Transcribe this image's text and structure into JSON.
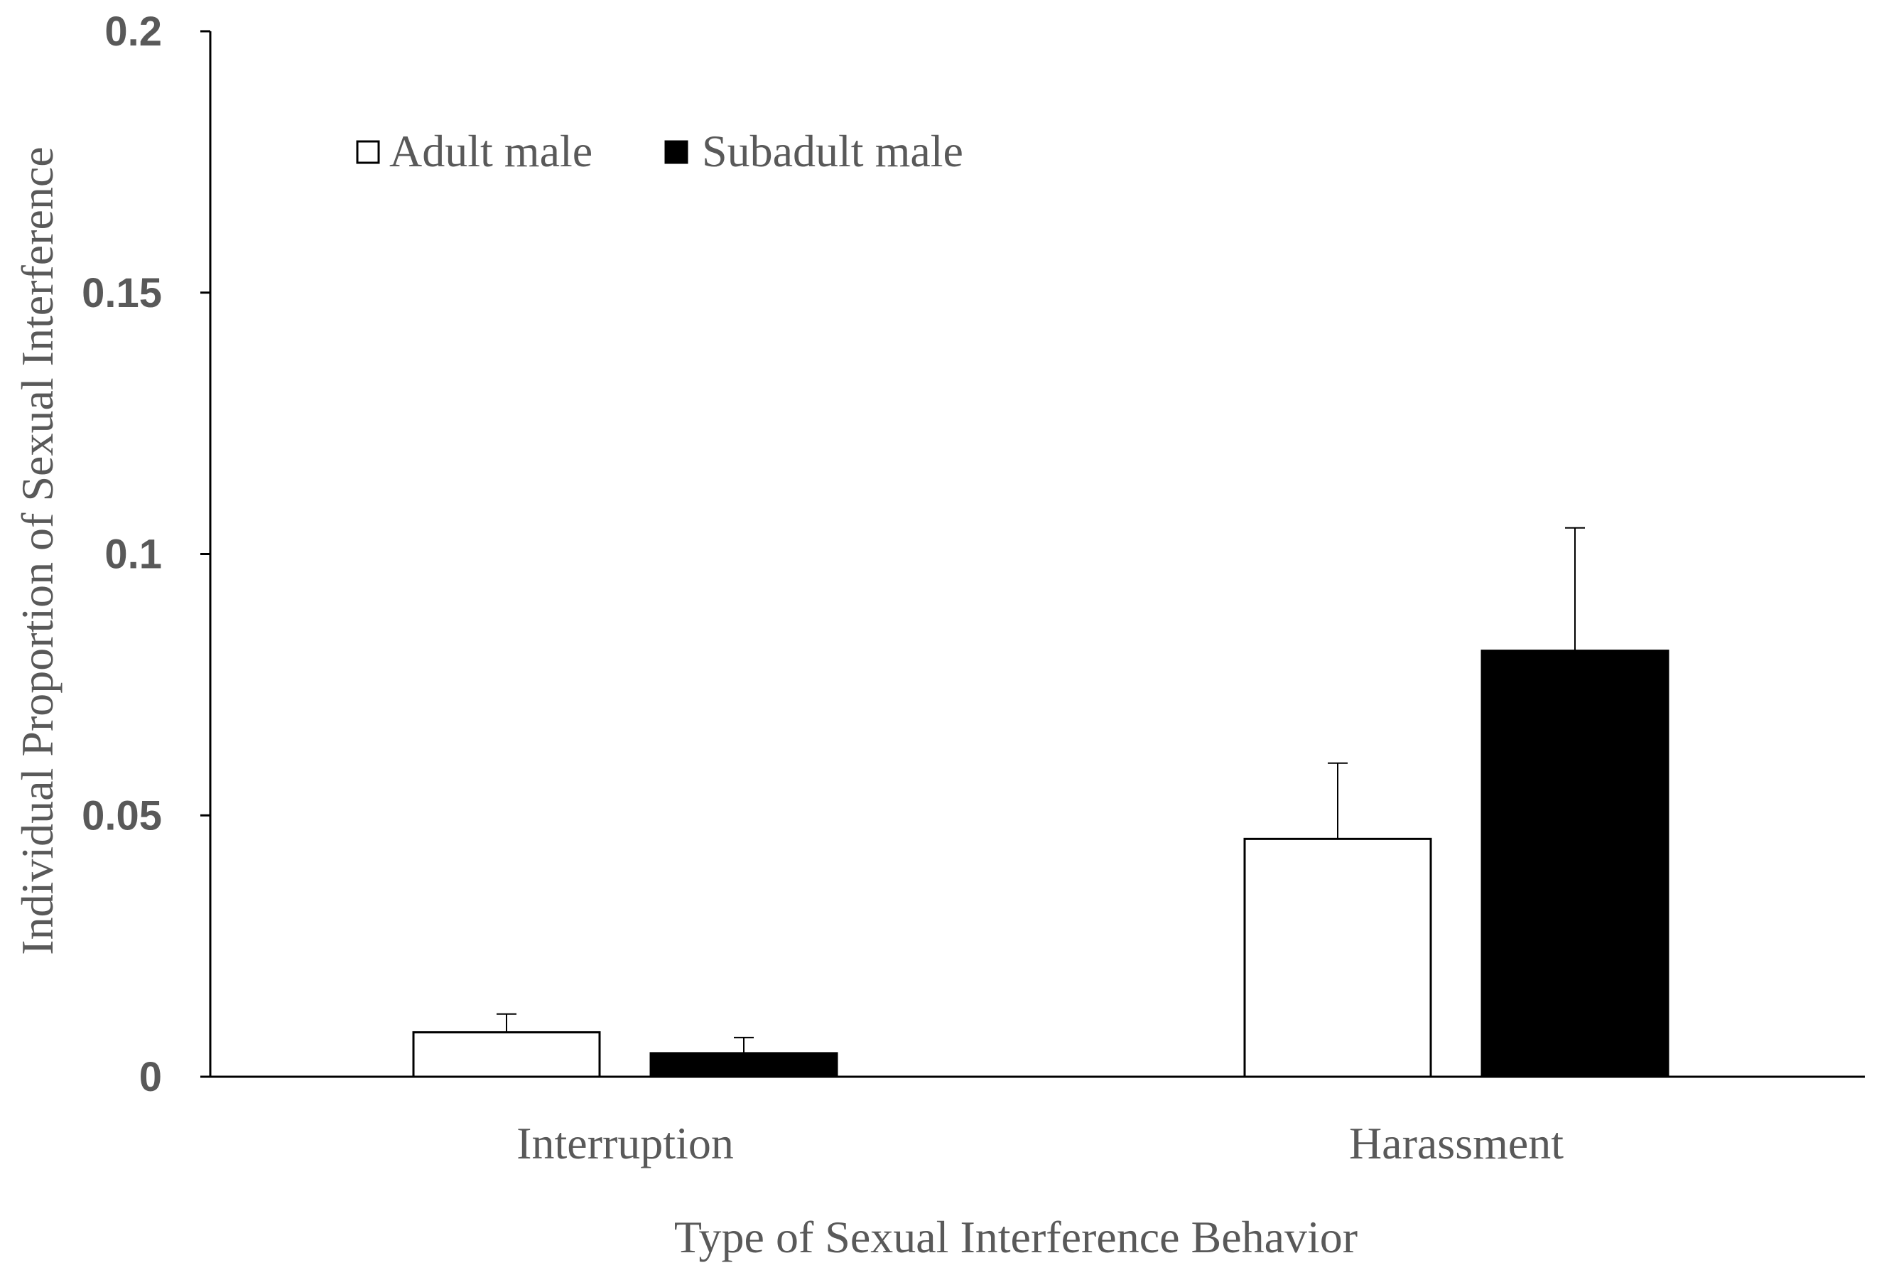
{
  "chart_data": {
    "type": "bar",
    "categories": [
      "Interruption",
      "Harassment"
    ],
    "series": [
      {
        "name": "Adult male",
        "color": "#ffffff",
        "values": [
          0.0085,
          0.0455
        ],
        "error": [
          0.0035,
          0.0145
        ]
      },
      {
        "name": "Subadult male",
        "color": "#000000",
        "values": [
          0.0045,
          0.0815
        ],
        "error": [
          0.003,
          0.0235
        ]
      }
    ],
    "title": "",
    "xlabel": "Type  of Sexual Interference  Behavior",
    "ylabel": "Individual  Proportion of Sexual Interference",
    "ylim": [
      0,
      0.2
    ],
    "yticks": [
      {
        "value": 0,
        "label": "0"
      },
      {
        "value": 0.05,
        "label": "0.05"
      },
      {
        "value": 0.1,
        "label": "0.1"
      },
      {
        "value": 0.15,
        "label": "0.15"
      },
      {
        "value": 0.2,
        "label": "0.2"
      }
    ],
    "grid": false,
    "legend_position": "top-left"
  }
}
